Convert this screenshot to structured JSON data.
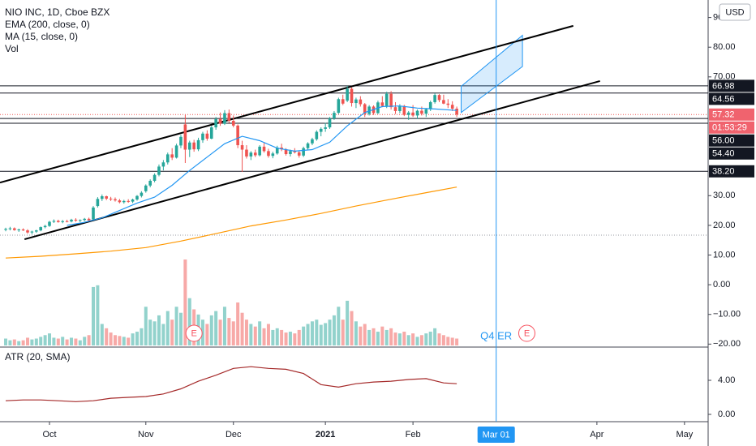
{
  "chart_data": [
    {
      "type": "candlestick",
      "title": "NIO INC, 1D, Cboe BZX",
      "indicators": [
        "EMA (200, close, 0)",
        "MA (15, close, 0)",
        "Vol"
      ],
      "currency": "USD",
      "up_color": "#26a69a",
      "down_color": "#ef5350",
      "xlim": [
        -1.3,
        160.4
      ],
      "ylim": [
        -21.0,
        95.9
      ],
      "xticks": [
        {
          "value": 10,
          "label": "Oct"
        },
        {
          "value": 32,
          "label": "Nov"
        },
        {
          "value": 52,
          "label": "Dec"
        },
        {
          "value": 73,
          "label": "2021"
        },
        {
          "value": 93,
          "label": "Feb"
        },
        {
          "value": 135,
          "label": "Apr"
        },
        {
          "value": 155,
          "label": "May"
        }
      ],
      "yticks": [
        {
          "value": 90,
          "label": "90.00"
        },
        {
          "value": 80,
          "label": "80.00"
        },
        {
          "value": 70,
          "label": "70.00"
        },
        {
          "value": 30,
          "label": "30.00"
        },
        {
          "value": 20,
          "label": "20.00"
        },
        {
          "value": 10,
          "label": "10.00"
        },
        {
          "value": 0,
          "label": "0.00"
        },
        {
          "value": -10,
          "label": "−10.00"
        },
        {
          "value": -20,
          "label": "−20.00"
        }
      ],
      "candles": [
        [
          18.5,
          19.2,
          18.0,
          18.8
        ],
        [
          18.8,
          19.5,
          18.3,
          19.0
        ],
        [
          19.0,
          19.3,
          18.2,
          18.4
        ],
        [
          18.4,
          18.9,
          17.8,
          18.6
        ],
        [
          18.6,
          19.0,
          18.1,
          18.3
        ],
        [
          18.3,
          18.7,
          17.2,
          17.6
        ],
        [
          17.6,
          18.2,
          17.0,
          17.9
        ],
        [
          17.9,
          18.5,
          17.5,
          18.3
        ],
        [
          18.3,
          19.6,
          18.0,
          19.4
        ],
        [
          19.4,
          20.2,
          19.0,
          19.8
        ],
        [
          19.8,
          21.5,
          19.5,
          21.2
        ],
        [
          21.2,
          22.0,
          20.8,
          21.5
        ],
        [
          21.5,
          21.9,
          20.9,
          21.1
        ],
        [
          21.1,
          21.8,
          20.7,
          21.4
        ],
        [
          21.4,
          21.9,
          21.0,
          21.3
        ],
        [
          21.3,
          22.2,
          21.0,
          21.9
        ],
        [
          21.9,
          22.4,
          21.2,
          21.6
        ],
        [
          21.6,
          22.0,
          21.1,
          21.8
        ],
        [
          21.8,
          22.5,
          21.4,
          22.2
        ],
        [
          22.2,
          22.6,
          21.5,
          21.7
        ],
        [
          22.0,
          26.5,
          21.8,
          26.0
        ],
        [
          26.5,
          29.5,
          26.0,
          28.9
        ],
        [
          28.9,
          30.4,
          28.2,
          29.8
        ],
        [
          29.8,
          30.0,
          28.5,
          29.0
        ],
        [
          29.0,
          29.6,
          28.2,
          28.8
        ],
        [
          28.8,
          29.4,
          28.0,
          28.4
        ],
        [
          28.4,
          28.9,
          27.4,
          27.8
        ],
        [
          27.8,
          28.6,
          27.3,
          28.2
        ],
        [
          28.2,
          28.8,
          27.6,
          28.0
        ],
        [
          28.0,
          29.0,
          27.5,
          28.7
        ],
        [
          28.7,
          30.2,
          28.3,
          29.9
        ],
        [
          29.9,
          31.5,
          29.4,
          31.0
        ],
        [
          31.5,
          33.8,
          31.0,
          33.4
        ],
        [
          33.4,
          35.5,
          32.8,
          35.0
        ],
        [
          35.0,
          37.5,
          34.5,
          37.0
        ],
        [
          37.0,
          40.5,
          36.5,
          39.8
        ],
        [
          39.8,
          42.0,
          38.5,
          41.2
        ],
        [
          41.2,
          44.5,
          40.5,
          43.9
        ],
        [
          43.9,
          46.0,
          42.0,
          42.8
        ],
        [
          42.8,
          47.5,
          42.5,
          46.9
        ],
        [
          46.9,
          50.5,
          46.0,
          49.8
        ],
        [
          54.0,
          57.2,
          41.0,
          45.5
        ],
        [
          45.5,
          48.5,
          43.0,
          47.9
        ],
        [
          47.9,
          48.8,
          44.8,
          45.6
        ],
        [
          45.6,
          49.5,
          45.0,
          48.7
        ],
        [
          48.7,
          51.5,
          47.8,
          50.9
        ],
        [
          50.9,
          52.0,
          48.5,
          49.2
        ],
        [
          49.2,
          53.5,
          49.0,
          53.0
        ],
        [
          53.0,
          56.5,
          52.2,
          55.8
        ],
        [
          55.8,
          58.0,
          53.5,
          54.2
        ],
        [
          54.2,
          58.8,
          53.8,
          57.8
        ],
        [
          57.8,
          59.0,
          54.5,
          55.2
        ],
        [
          55.2,
          57.0,
          53.0,
          53.6
        ],
        [
          53.6,
          54.0,
          46.0,
          47.0
        ],
        [
          47.0,
          48.5,
          38.0,
          45.5
        ],
        [
          45.5,
          47.0,
          42.5,
          43.2
        ],
        [
          43.2,
          45.0,
          42.0,
          44.5
        ],
        [
          44.5,
          45.5,
          43.0,
          43.6
        ],
        [
          43.6,
          47.0,
          43.2,
          46.5
        ],
        [
          46.5,
          47.8,
          44.5,
          45.0
        ],
        [
          45.0,
          45.8,
          42.8,
          43.4
        ],
        [
          43.4,
          44.8,
          42.6,
          44.2
        ],
        [
          44.2,
          46.8,
          43.8,
          46.2
        ],
        [
          46.2,
          47.5,
          45.0,
          45.6
        ],
        [
          45.6,
          46.0,
          43.5,
          44.0
        ],
        [
          44.0,
          45.5,
          43.2,
          45.0
        ],
        [
          45.0,
          46.0,
          44.2,
          44.6
        ],
        [
          44.6,
          45.2,
          42.8,
          43.5
        ],
        [
          43.5,
          46.5,
          43.0,
          46.0
        ],
        [
          46.0,
          48.0,
          45.5,
          47.6
        ],
        [
          47.6,
          49.5,
          47.0,
          49.0
        ],
        [
          49.0,
          52.0,
          48.5,
          51.5
        ],
        [
          51.5,
          53.0,
          50.0,
          52.5
        ],
        [
          52.5,
          54.5,
          51.5,
          53.0
        ],
        [
          53.0,
          56.5,
          52.5,
          56.0
        ],
        [
          56.0,
          58.5,
          55.5,
          57.9
        ],
        [
          57.9,
          63.0,
          57.5,
          62.5
        ],
        [
          62.5,
          64.0,
          60.5,
          61.0
        ],
        [
          62.0,
          67.0,
          61.5,
          66.0
        ],
        [
          66.0,
          66.5,
          60.0,
          61.2
        ],
        [
          61.2,
          63.0,
          59.5,
          62.4
        ],
        [
          62.4,
          63.5,
          60.0,
          60.8
        ],
        [
          60.8,
          61.2,
          56.5,
          57.5
        ],
        [
          57.5,
          60.5,
          57.0,
          60.0
        ],
        [
          60.0,
          60.4,
          57.2,
          57.8
        ],
        [
          57.8,
          62.0,
          57.5,
          61.4
        ],
        [
          61.4,
          63.5,
          59.8,
          60.2
        ],
        [
          60.2,
          65.0,
          59.5,
          64.3
        ],
        [
          64.3,
          65.2,
          59.0,
          59.8
        ],
        [
          59.8,
          61.5,
          57.5,
          58.5
        ],
        [
          58.5,
          60.8,
          57.8,
          60.2
        ],
        [
          60.2,
          60.6,
          56.8,
          57.2
        ],
        [
          57.2,
          58.5,
          55.5,
          58.0
        ],
        [
          58.0,
          60.5,
          56.5,
          57.0
        ],
        [
          57.0,
          59.0,
          55.8,
          58.6
        ],
        [
          58.6,
          60.0,
          57.0,
          57.6
        ],
        [
          57.6,
          59.5,
          56.5,
          59.1
        ],
        [
          59.1,
          62.0,
          58.5,
          61.5
        ],
        [
          61.5,
          64.5,
          61.0,
          63.9
        ],
        [
          63.9,
          64.2,
          61.5,
          62.2
        ],
        [
          62.2,
          64.0,
          60.8,
          61.0
        ],
        [
          61.0,
          62.5,
          59.5,
          60.6
        ],
        [
          60.6,
          61.8,
          58.5,
          59.3
        ],
        [
          59.3,
          60.0,
          56.5,
          57.32
        ]
      ],
      "volume": [
        8,
        6,
        7,
        5,
        6,
        9,
        7,
        8,
        10,
        12,
        14,
        9,
        8,
        10,
        7,
        9,
        8,
        6,
        10,
        12,
        68,
        70,
        25,
        20,
        15,
        12,
        11,
        10,
        9,
        14,
        16,
        20,
        45,
        30,
        28,
        35,
        25,
        40,
        30,
        45,
        38,
        100,
        55,
        42,
        36,
        30,
        25,
        35,
        40,
        30,
        45,
        32,
        28,
        50,
        38,
        30,
        25,
        22,
        28,
        20,
        25,
        18,
        20,
        18,
        15,
        16,
        14,
        18,
        22,
        25,
        28,
        30,
        24,
        26,
        30,
        35,
        45,
        30,
        52,
        40,
        28,
        22,
        25,
        18,
        20,
        16,
        22,
        18,
        20,
        15,
        14,
        16,
        12,
        14,
        10,
        12,
        14,
        16,
        20,
        14,
        12,
        10,
        9,
        8
      ],
      "volume_lim": [
        0,
        100
      ],
      "series": [
        {
          "name": "EMA (200, close, 0)",
          "color": "#ff9800",
          "x": [
            0,
            8,
            16,
            24,
            32,
            40,
            48,
            56,
            64,
            72,
            80,
            88,
            96,
            103
          ],
          "values": [
            9.0,
            9.6,
            10.4,
            11.3,
            12.5,
            14.7,
            17.2,
            19.8,
            21.8,
            24.0,
            26.5,
            28.8,
            31.0,
            32.9
          ]
        },
        {
          "name": "MA (15, close, 0)",
          "color": "#2196f3",
          "x": [
            14,
            18,
            22,
            26,
            30,
            34,
            38,
            42,
            46,
            50,
            54,
            58,
            62,
            66,
            70,
            74,
            78,
            82,
            86,
            90,
            94,
            98,
            103
          ],
          "values": [
            20.0,
            21.0,
            22.5,
            25.0,
            27.5,
            29.5,
            33.5,
            38.5,
            43.0,
            47.5,
            50.0,
            48.5,
            46.0,
            45.0,
            45.5,
            48.0,
            53.5,
            58.0,
            60.0,
            60.2,
            59.5,
            59.2,
            58.7
          ]
        }
      ],
      "levels": [
        66.98,
        64.56,
        {
          "value": 56,
          "label": "56.00"
        },
        {
          "value": 54.4,
          "label": "54.40"
        },
        {
          "value": 38.2,
          "label": "38.20"
        }
      ],
      "last_price": 57.32,
      "countdown": "01:53:29",
      "dotted_level": 16.7,
      "trendlines": [
        [
          [
            -1.3,
            34.4
          ],
          [
            129.6,
            87.2
          ]
        ],
        [
          [
            4.3,
            15.3
          ],
          [
            135.7,
            68.6
          ]
        ]
      ],
      "projection": [
        [
          104,
          66.8
        ],
        [
          118,
          84.0
        ],
        [
          118,
          73.5
        ],
        [
          104,
          58.0
        ]
      ],
      "marker": {
        "value": 112,
        "label": "Mar 01",
        "note": "Q4 ER"
      },
      "events": [
        {
          "x": 43,
          "label": "E"
        },
        {
          "x": 119,
          "label": "E"
        }
      ]
    },
    {
      "type": "line",
      "title": "ATR (20, SMA)",
      "xlim": [
        -1.3,
        160.4
      ],
      "ylim": [
        -0.857,
        7.905
      ],
      "yticks": [
        {
          "value": 4,
          "label": "4.00"
        },
        {
          "value": 0,
          "label": "0.00"
        }
      ],
      "series": [
        {
          "name": "ATR (20, SMA)",
          "color": "#a52a2a",
          "x": [
            0,
            4,
            8,
            12,
            16,
            20,
            24,
            28,
            32,
            36,
            40,
            44,
            48,
            52,
            56,
            60,
            64,
            68,
            72,
            76,
            80,
            84,
            88,
            92,
            96,
            100,
            103
          ],
          "values": [
            1.6,
            1.7,
            1.7,
            1.6,
            1.5,
            1.6,
            1.9,
            2.0,
            2.1,
            2.4,
            3.0,
            3.9,
            4.6,
            5.4,
            5.6,
            5.4,
            5.3,
            4.8,
            3.5,
            3.2,
            3.6,
            3.8,
            3.9,
            4.1,
            4.2,
            3.7,
            3.6
          ]
        }
      ]
    }
  ]
}
